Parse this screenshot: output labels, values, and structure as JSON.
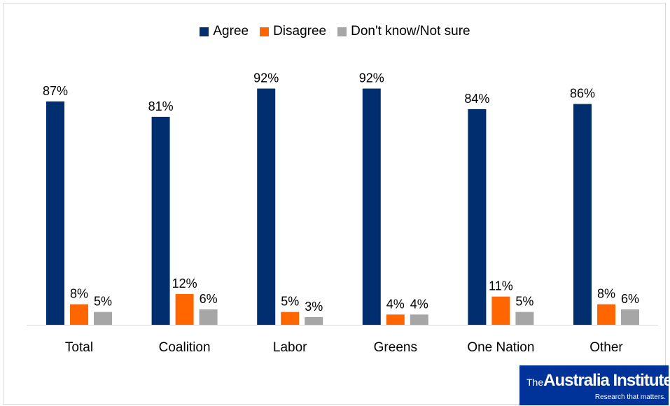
{
  "chart_data": {
    "type": "bar",
    "categories": [
      "Total",
      "Coalition",
      "Labor",
      "Greens",
      "One Nation",
      "Other"
    ],
    "series": [
      {
        "name": "Agree",
        "values": [
          87,
          81,
          92,
          92,
          84,
          86
        ],
        "color": "#002e6e"
      },
      {
        "name": "Disagree",
        "values": [
          8,
          12,
          5,
          4,
          11,
          8
        ],
        "color": "#ff6600"
      },
      {
        "name": "Don't know/Not sure",
        "values": [
          5,
          6,
          3,
          4,
          5,
          6
        ],
        "color": "#a6a6a6"
      }
    ],
    "value_suffix": "%",
    "ylim": [
      0,
      100
    ],
    "grid": false,
    "legend_position": "top-center",
    "title": "",
    "xlabel": "",
    "ylabel": ""
  },
  "logo": {
    "prefix": "The",
    "name": "Australia Institute",
    "tagline": "Research that matters."
  }
}
